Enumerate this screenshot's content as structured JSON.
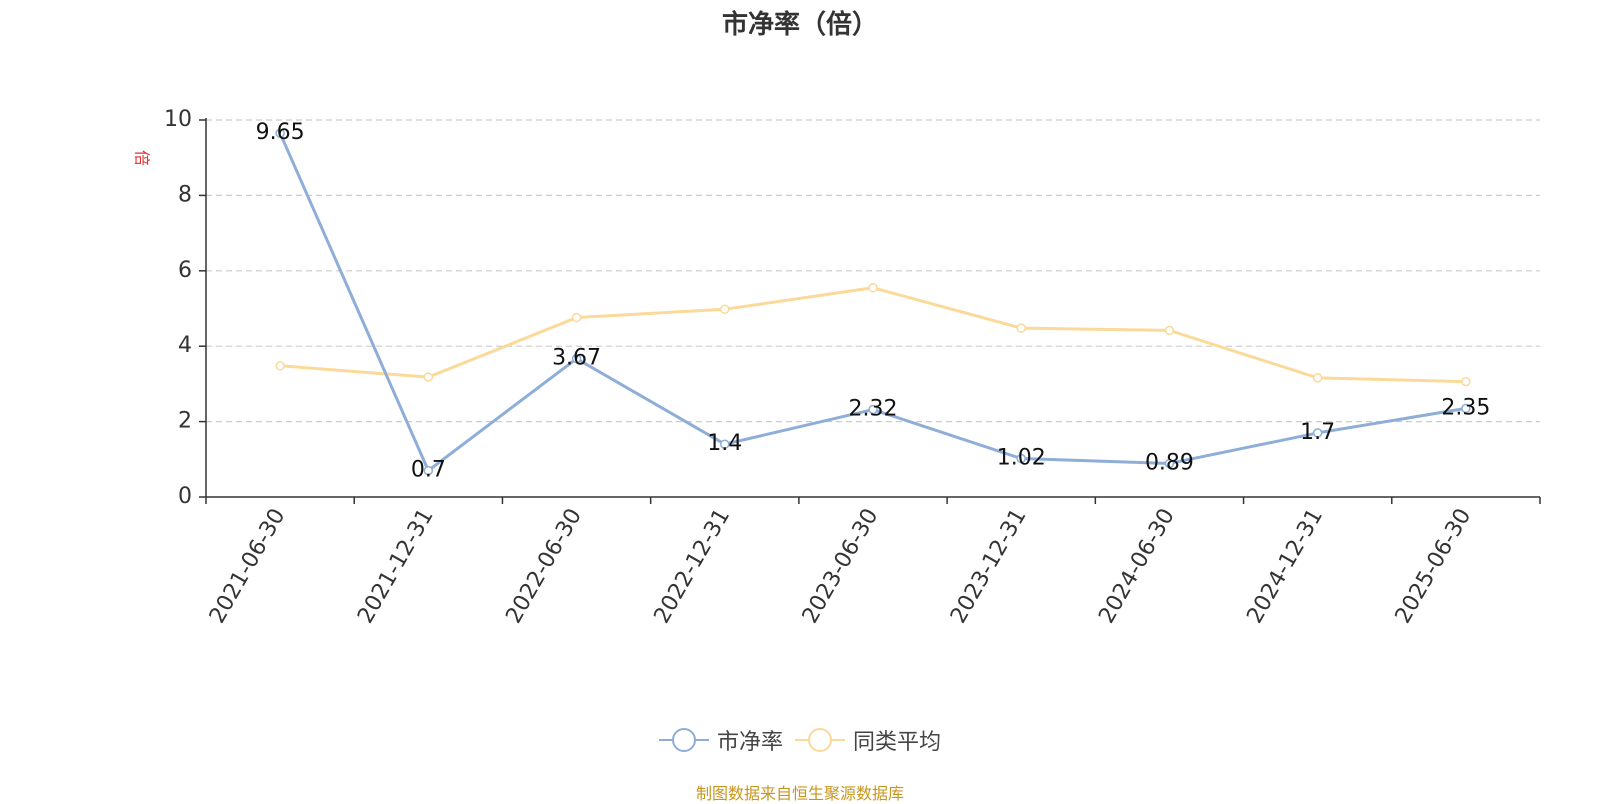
{
  "chart_data": {
    "type": "line",
    "title": "市净率（倍）",
    "ylabel": "倍",
    "ylim": [
      0,
      10
    ],
    "yticks": [
      "0",
      "2",
      "4",
      "6",
      "8",
      "10"
    ],
    "grid": true,
    "legend_position": "bottom-center",
    "categories": [
      "2021-06-30",
      "2021-12-31",
      "2022-06-30",
      "2022-12-31",
      "2023-06-30",
      "2023-12-31",
      "2024-06-30",
      "2024-12-31",
      "2025-06-30"
    ],
    "series": [
      {
        "name": "市净率",
        "color": "#8eaed8",
        "values": [
          9.65,
          0.7,
          3.67,
          1.4,
          2.32,
          1.02,
          0.89,
          1.7,
          2.35
        ],
        "labels": [
          "9.65",
          "0.7",
          "3.67",
          "1.4",
          "2.32",
          "1.02",
          "0.89",
          "1.7",
          "2.35"
        ]
      },
      {
        "name": "同类平均",
        "color": "#fbd999",
        "values": [
          3.48,
          3.18,
          4.76,
          4.98,
          5.55,
          4.48,
          4.42,
          3.16,
          3.06
        ]
      }
    ]
  },
  "footer": {
    "source": "制图数据来自恒生聚源数据库",
    "source_color": "#c8961e"
  },
  "colors": {
    "axis": "#333333",
    "grid": "#cccccc",
    "ylabel": "#e03030"
  }
}
